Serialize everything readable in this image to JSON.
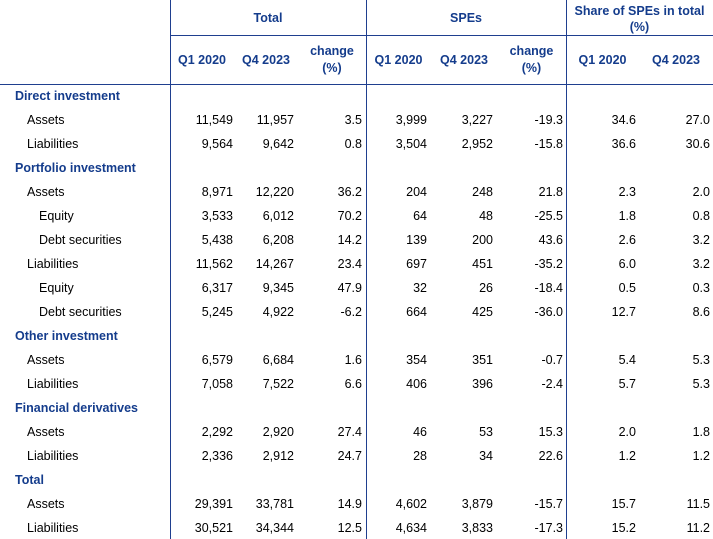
{
  "header": {
    "total": "Total",
    "spes": "SPEs",
    "share": "Share of SPEs in total",
    "share_unit": "(%)",
    "q1": "Q1 2020",
    "q4": "Q4 2023",
    "change": "change",
    "change_unit": "(%)"
  },
  "rows": [
    {
      "label": "Direct investment",
      "kind": "group"
    },
    {
      "label": "Assets",
      "kind": "item",
      "values": [
        "11,549",
        "11,957",
        "3.5",
        "3,999",
        "3,227",
        "-19.3",
        "34.6",
        "27.0"
      ]
    },
    {
      "label": "Liabilities",
      "kind": "item",
      "values": [
        "9,564",
        "9,642",
        "0.8",
        "3,504",
        "2,952",
        "-15.8",
        "36.6",
        "30.6"
      ]
    },
    {
      "label": "Portfolio investment",
      "kind": "group"
    },
    {
      "label": "Assets",
      "kind": "item",
      "values": [
        "8,971",
        "12,220",
        "36.2",
        "204",
        "248",
        "21.8",
        "2.3",
        "2.0"
      ]
    },
    {
      "label": "Equity",
      "kind": "sub",
      "values": [
        "3,533",
        "6,012",
        "70.2",
        "64",
        "48",
        "-25.5",
        "1.8",
        "0.8"
      ]
    },
    {
      "label": "Debt securities",
      "kind": "sub",
      "values": [
        "5,438",
        "6,208",
        "14.2",
        "139",
        "200",
        "43.6",
        "2.6",
        "3.2"
      ]
    },
    {
      "label": "Liabilities",
      "kind": "item",
      "values": [
        "11,562",
        "14,267",
        "23.4",
        "697",
        "451",
        "-35.2",
        "6.0",
        "3.2"
      ]
    },
    {
      "label": "Equity",
      "kind": "sub",
      "values": [
        "6,317",
        "9,345",
        "47.9",
        "32",
        "26",
        "-18.4",
        "0.5",
        "0.3"
      ]
    },
    {
      "label": "Debt securities",
      "kind": "sub",
      "values": [
        "5,245",
        "4,922",
        "-6.2",
        "664",
        "425",
        "-36.0",
        "12.7",
        "8.6"
      ]
    },
    {
      "label": "Other investment",
      "kind": "group"
    },
    {
      "label": "Assets",
      "kind": "item",
      "values": [
        "6,579",
        "6,684",
        "1.6",
        "354",
        "351",
        "-0.7",
        "5.4",
        "5.3"
      ]
    },
    {
      "label": "Liabilities",
      "kind": "item",
      "values": [
        "7,058",
        "7,522",
        "6.6",
        "406",
        "396",
        "-2.4",
        "5.7",
        "5.3"
      ]
    },
    {
      "label": "Financial derivatives",
      "kind": "group"
    },
    {
      "label": "Assets",
      "kind": "item",
      "values": [
        "2,292",
        "2,920",
        "27.4",
        "46",
        "53",
        "15.3",
        "2.0",
        "1.8"
      ]
    },
    {
      "label": "Liabilities",
      "kind": "item",
      "values": [
        "2,336",
        "2,912",
        "24.7",
        "28",
        "34",
        "22.6",
        "1.2",
        "1.2"
      ]
    },
    {
      "label": "Total",
      "kind": "group"
    },
    {
      "label": "Assets",
      "kind": "item",
      "values": [
        "29,391",
        "33,781",
        "14.9",
        "4,602",
        "3,879",
        "-15.7",
        "15.7",
        "11.5"
      ]
    },
    {
      "label": "Liabilities",
      "kind": "item",
      "values": [
        "30,521",
        "34,344",
        "12.5",
        "4,634",
        "3,833",
        "-17.3",
        "15.2",
        "11.2"
      ]
    }
  ]
}
